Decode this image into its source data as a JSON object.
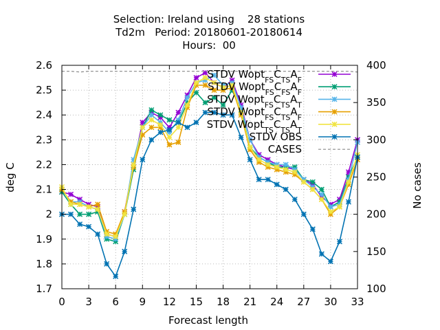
{
  "title_lines": [
    "Selection: Ireland using    28 stations",
    "Td2m   Period: 20180601-20180614",
    "Hours:  00"
  ],
  "chart_data": {
    "type": "line",
    "xlabel": "Forecast length",
    "ylabel": "deg C",
    "y2label": "No cases",
    "xlim": [
      0,
      33
    ],
    "ylim": [
      1.7,
      2.6
    ],
    "y2lim": [
      100,
      400
    ],
    "xticks": [
      "0",
      "3",
      "6",
      "9",
      "12",
      "15",
      "18",
      "21",
      "24",
      "27",
      "30",
      "33"
    ],
    "yticks": [
      "1.7",
      "1.8",
      "1.9",
      "2",
      "2.1",
      "2.2",
      "2.3",
      "2.4",
      "2.5",
      "2.6"
    ],
    "y2ticks": [
      "100",
      "150",
      "200",
      "250",
      "300",
      "350",
      "400"
    ],
    "grid": true,
    "legend_position": "top-right",
    "x": [
      0,
      1,
      2,
      3,
      4,
      5,
      6,
      7,
      8,
      9,
      10,
      11,
      12,
      13,
      14,
      15,
      16,
      17,
      18,
      19,
      20,
      21,
      22,
      23,
      24,
      25,
      26,
      27,
      28,
      29,
      30,
      31,
      32,
      33
    ],
    "series": [
      {
        "label_main": "STDV Wopt",
        "label_parts": [
          [
            "FS",
            "sub"
          ],
          [
            "C",
            "n"
          ],
          [
            "TS",
            "sub"
          ],
          [
            "A",
            "n"
          ],
          [
            "F",
            "sub"
          ]
        ],
        "color": "#9400d3",
        "axis": "left",
        "values": [
          2.09,
          2.08,
          2.06,
          2.04,
          2.03,
          1.92,
          1.91,
          2.01,
          2.2,
          2.37,
          2.41,
          2.39,
          2.35,
          2.41,
          2.48,
          2.55,
          2.57,
          2.53,
          2.51,
          2.54,
          2.44,
          2.3,
          2.24,
          2.22,
          2.2,
          2.19,
          2.18,
          2.14,
          2.12,
          2.07,
          2.04,
          2.06,
          2.17,
          2.3
        ]
      },
      {
        "label_main": "STDV Wopt",
        "label_parts": [
          [
            "FS",
            "sub"
          ],
          [
            "C",
            "n"
          ],
          [
            "FS",
            "sub"
          ],
          [
            "A",
            "n"
          ],
          [
            "F",
            "sub"
          ]
        ],
        "color": "#009e73",
        "axis": "left",
        "values": [
          2.09,
          2.04,
          2.0,
          2.0,
          2.01,
          1.9,
          1.89,
          2.0,
          2.18,
          2.35,
          2.42,
          2.4,
          2.38,
          2.37,
          2.45,
          2.49,
          2.45,
          2.47,
          2.44,
          2.5,
          2.42,
          2.27,
          2.23,
          2.21,
          2.19,
          2.19,
          2.19,
          2.14,
          2.13,
          2.1,
          2.03,
          2.05,
          2.15,
          2.23
        ]
      },
      {
        "label_main": "STDV Wopt",
        "label_parts": [
          [
            "FS",
            "sub"
          ],
          [
            "C",
            "n"
          ],
          [
            "TS",
            "sub"
          ],
          [
            "A",
            "n"
          ],
          [
            "T",
            "sub"
          ]
        ],
        "color": "#56b4e9",
        "axis": "left",
        "values": [
          2.1,
          2.05,
          2.05,
          2.03,
          2.02,
          1.91,
          1.9,
          2.0,
          2.22,
          2.35,
          2.4,
          2.37,
          2.33,
          2.38,
          2.47,
          2.53,
          2.54,
          2.56,
          2.52,
          2.53,
          2.43,
          2.3,
          2.23,
          2.21,
          2.2,
          2.2,
          2.18,
          2.14,
          2.11,
          2.08,
          2.03,
          2.04,
          2.14,
          2.29
        ]
      },
      {
        "label_main": "STDV Wopt",
        "label_parts": [
          [
            "FS",
            "sub"
          ],
          [
            "C",
            "n"
          ],
          [
            "TS",
            "sub"
          ],
          [
            "A",
            "n"
          ],
          [
            "F",
            "sub"
          ]
        ],
        "color": "#e69f00",
        "axis": "left",
        "values": [
          2.1,
          2.05,
          2.04,
          2.03,
          2.04,
          1.93,
          1.92,
          2.01,
          2.19,
          2.32,
          2.35,
          2.35,
          2.28,
          2.29,
          2.43,
          2.52,
          2.52,
          2.5,
          2.5,
          2.51,
          2.4,
          2.26,
          2.21,
          2.19,
          2.18,
          2.17,
          2.16,
          2.13,
          2.1,
          2.06,
          2.0,
          2.03,
          2.12,
          2.22
        ]
      },
      {
        "label_main": "STDV Wopt",
        "label_parts": [
          [
            "TS",
            "sub"
          ],
          [
            "C",
            "n"
          ],
          [
            "TS",
            "sub"
          ],
          [
            "A",
            "n"
          ],
          [
            "T",
            "sub"
          ]
        ],
        "color": "#f0e442",
        "axis": "left",
        "values": [
          2.11,
          2.04,
          2.04,
          2.03,
          2.02,
          1.92,
          1.91,
          2.0,
          2.2,
          2.35,
          2.38,
          2.36,
          2.31,
          2.35,
          2.44,
          2.53,
          2.55,
          2.53,
          2.51,
          2.52,
          2.41,
          2.27,
          2.22,
          2.2,
          2.19,
          2.18,
          2.17,
          2.13,
          2.1,
          2.06,
          2.01,
          2.03,
          2.13,
          2.24
        ]
      },
      {
        "label_main": "STDV OBS",
        "label_parts": [],
        "color": "#0072b2",
        "axis": "left",
        "values": [
          2.0,
          2.0,
          1.96,
          1.95,
          1.92,
          1.8,
          1.75,
          1.85,
          2.02,
          2.22,
          2.3,
          2.33,
          2.34,
          2.37,
          2.35,
          2.37,
          2.41,
          2.41,
          2.4,
          2.4,
          2.31,
          2.22,
          2.14,
          2.14,
          2.12,
          2.1,
          2.06,
          2.0,
          1.94,
          1.84,
          1.81,
          1.89,
          2.05,
          2.23
        ]
      },
      {
        "label_main": "CASES",
        "label_parts": [],
        "color": "#888888",
        "axis": "right",
        "dashed": true,
        "values": [
          392,
          392,
          391,
          392,
          392,
          392,
          392,
          392,
          392,
          392,
          392,
          392,
          392,
          392,
          392,
          392,
          392,
          392,
          392,
          392,
          392,
          392,
          392,
          392,
          392,
          392,
          392,
          392,
          392,
          392,
          392,
          392,
          392,
          391
        ]
      }
    ]
  }
}
